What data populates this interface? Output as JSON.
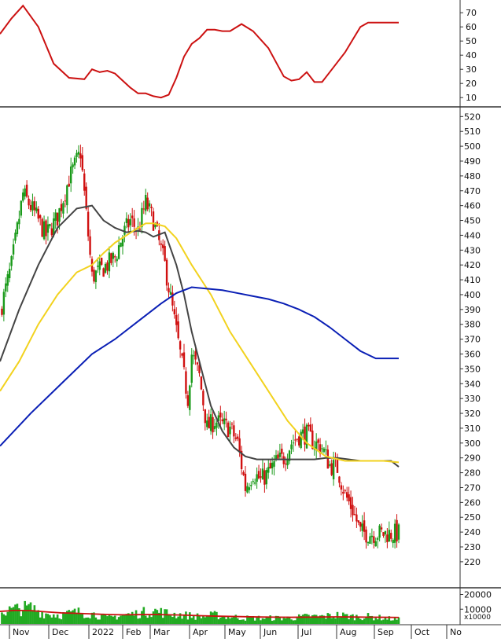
{
  "chart_data": [
    {
      "panel": "oscillator",
      "type": "line",
      "y_ticks": [
        10,
        20,
        30,
        40,
        50,
        60,
        70
      ],
      "ylim": [
        4,
        79
      ],
      "series": [
        {
          "color": "#cc1111",
          "x": [
            0,
            3,
            6,
            10,
            14,
            18,
            22,
            24,
            26,
            28,
            30,
            32,
            34,
            36,
            38,
            40,
            42,
            44,
            46,
            48,
            50,
            52,
            54,
            56,
            58,
            60,
            63,
            66,
            70,
            72,
            74,
            76,
            78,
            80,
            82,
            84,
            86,
            88,
            90,
            92,
            94,
            96,
            98,
            100,
            102,
            104
          ],
          "values": [
            55,
            66,
            75,
            60,
            34,
            24,
            23,
            30,
            28,
            29,
            27,
            22,
            17,
            13,
            13,
            11,
            10,
            12,
            24,
            39,
            48,
            52,
            58,
            58,
            57,
            57,
            62,
            57,
            45,
            35,
            25,
            22,
            23,
            28,
            21,
            21,
            28,
            35,
            42,
            51,
            60,
            63,
            63,
            63,
            63,
            63
          ]
        }
      ]
    },
    {
      "panel": "price",
      "type": "candlestick",
      "y_ticks": [
        220,
        230,
        240,
        250,
        260,
        270,
        280,
        290,
        300,
        310,
        320,
        330,
        340,
        350,
        360,
        370,
        380,
        390,
        400,
        410,
        420,
        430,
        440,
        450,
        460,
        470,
        480,
        490,
        500,
        510,
        520
      ],
      "ylim": [
        203,
        526
      ],
      "close_path": {
        "x": [
          0,
          3,
          6,
          9,
          12,
          15,
          18,
          21,
          24,
          27,
          30,
          32,
          34,
          36,
          38,
          40,
          43,
          46,
          49,
          50,
          52,
          54,
          56,
          58,
          60,
          62,
          64,
          66,
          68,
          70,
          72,
          74,
          76,
          78,
          80,
          82,
          84,
          86,
          88,
          90,
          92,
          94,
          96,
          98,
          100,
          102,
          104
        ],
        "values": [
          388,
          420,
          468,
          455,
          440,
          452,
          478,
          496,
          412,
          418,
          425,
          440,
          450,
          443,
          462,
          450,
          420,
          375,
          330,
          360,
          345,
          310,
          315,
          312,
          310,
          300,
          270,
          280,
          275,
          280,
          287,
          290,
          300,
          305,
          306,
          300,
          297,
          285,
          283,
          265,
          255,
          240,
          239,
          239,
          239,
          239,
          239
        ]
      },
      "x_ticks": [
        "Nov",
        "Dec",
        "2022",
        "Feb",
        "Mar",
        "Apr",
        "May",
        "Jun",
        "Jul",
        "Aug",
        "Sep",
        "Oct",
        "No"
      ],
      "series": [
        {
          "name": "",
          "color": "#444444",
          "x": [
            0,
            5,
            10,
            15,
            20,
            24,
            27,
            30,
            33,
            36,
            38,
            40,
            43,
            46,
            48,
            50,
            52,
            55,
            58,
            61,
            64,
            67,
            70,
            73,
            76,
            79,
            82,
            85,
            88,
            91,
            94,
            97,
            100,
            102,
            104
          ],
          "values": [
            355,
            390,
            420,
            445,
            458,
            460,
            450,
            445,
            442,
            443,
            442,
            439,
            442,
            420,
            400,
            375,
            355,
            325,
            308,
            297,
            291,
            289,
            289,
            289,
            289,
            289,
            289,
            290,
            290,
            289,
            288,
            288,
            288,
            288,
            284
          ]
        },
        {
          "name": "",
          "color": "#f2d21e",
          "x": [
            0,
            5,
            10,
            15,
            20,
            24,
            27,
            30,
            33,
            36,
            38,
            40,
            43,
            46,
            50,
            55,
            60,
            65,
            70,
            75,
            80,
            85,
            90,
            95,
            100,
            104
          ],
          "values": [
            335,
            355,
            380,
            400,
            415,
            420,
            428,
            435,
            440,
            445,
            448,
            448,
            446,
            438,
            420,
            400,
            375,
            355,
            335,
            315,
            300,
            291,
            288,
            288,
            288,
            287
          ]
        },
        {
          "name": "",
          "color": "#0a1fb5",
          "x": [
            0,
            8,
            16,
            24,
            30,
            36,
            42,
            46,
            50,
            54,
            58,
            62,
            66,
            70,
            74,
            78,
            82,
            86,
            90,
            94,
            98,
            100,
            102,
            104
          ],
          "values": [
            298,
            320,
            340,
            360,
            370,
            382,
            394,
            401,
            405,
            404,
            403,
            401,
            399,
            397,
            394,
            390,
            385,
            378,
            370,
            362,
            357,
            357,
            357,
            357
          ]
        }
      ]
    },
    {
      "panel": "volume",
      "type": "bar",
      "y_ticks": [
        "20000",
        "10000"
      ],
      "unit": "x10000",
      "ma_color": "#cc1111",
      "bar_color": "#22aa22",
      "x": [
        0,
        4,
        8,
        12,
        16,
        20,
        24,
        28,
        32,
        36,
        40,
        44,
        48,
        52,
        56,
        60,
        64,
        68,
        72,
        76,
        80,
        84,
        88,
        92,
        96,
        100,
        104
      ],
      "values": [
        8000,
        10000,
        11000,
        7000,
        6000,
        8000,
        7000,
        4000,
        6000,
        7000,
        9000,
        7000,
        6000,
        5000,
        6000,
        5000,
        4000,
        4000,
        4000,
        4000,
        5000,
        5000,
        6000,
        5000,
        5000,
        4000,
        3000
      ],
      "ma": [
        8500,
        9200,
        9000,
        8200,
        7500,
        7200,
        6800,
        6400,
        6200,
        6300,
        6400,
        6200,
        6000,
        5600,
        5300,
        5100,
        4900,
        4700,
        4600,
        4500,
        4600,
        4700,
        4800,
        4700,
        4600,
        4500,
        4400
      ]
    }
  ]
}
